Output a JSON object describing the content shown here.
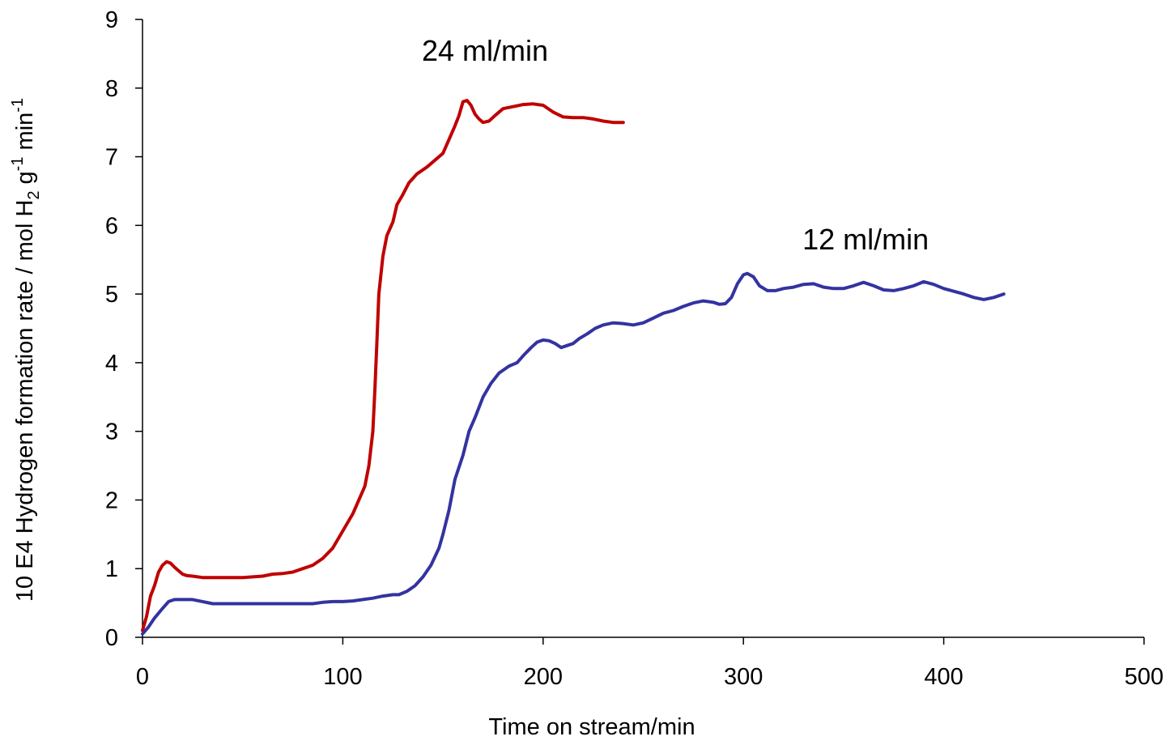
{
  "chart_data": {
    "type": "line",
    "title": "",
    "xlabel": "Time on stream/min",
    "ylabel": {
      "prefix": "10 E4 Hydrogen formation rate / mol H",
      "sub": "2",
      "mid1": " g",
      "sup1": "-1",
      "mid2": " min",
      "sup2": "-1"
    },
    "xlim": [
      0,
      500
    ],
    "ylim": [
      0,
      9
    ],
    "xticks": [
      0,
      100,
      200,
      300,
      400,
      500
    ],
    "yticks": [
      0,
      1,
      2,
      3,
      4,
      5,
      6,
      7,
      8,
      9
    ],
    "grid": false,
    "series": [
      {
        "name": "24 ml/min",
        "color": "#c00000",
        "label_at": [
          171,
          8.4
        ],
        "points": [
          [
            0,
            0.1
          ],
          [
            2,
            0.3
          ],
          [
            4,
            0.6
          ],
          [
            6,
            0.75
          ],
          [
            8,
            0.95
          ],
          [
            10,
            1.05
          ],
          [
            12,
            1.1
          ],
          [
            14,
            1.08
          ],
          [
            16,
            1.02
          ],
          [
            18,
            0.97
          ],
          [
            20,
            0.92
          ],
          [
            22,
            0.9
          ],
          [
            25,
            0.89
          ],
          [
            30,
            0.87
          ],
          [
            40,
            0.87
          ],
          [
            50,
            0.87
          ],
          [
            60,
            0.89
          ],
          [
            65,
            0.92
          ],
          [
            70,
            0.93
          ],
          [
            75,
            0.95
          ],
          [
            80,
            1.0
          ],
          [
            85,
            1.05
          ],
          [
            90,
            1.15
          ],
          [
            95,
            1.3
          ],
          [
            100,
            1.55
          ],
          [
            105,
            1.8
          ],
          [
            108,
            2.0
          ],
          [
            111,
            2.2
          ],
          [
            113,
            2.5
          ],
          [
            115,
            3.0
          ],
          [
            116,
            3.6
          ],
          [
            117,
            4.3
          ],
          [
            118,
            5.0
          ],
          [
            120,
            5.55
          ],
          [
            122,
            5.85
          ],
          [
            125,
            6.05
          ],
          [
            127,
            6.3
          ],
          [
            130,
            6.45
          ],
          [
            133,
            6.62
          ],
          [
            137,
            6.75
          ],
          [
            142,
            6.85
          ],
          [
            146,
            6.95
          ],
          [
            150,
            7.05
          ],
          [
            153,
            7.25
          ],
          [
            156,
            7.45
          ],
          [
            158,
            7.6
          ],
          [
            160,
            7.8
          ],
          [
            162,
            7.82
          ],
          [
            164,
            7.75
          ],
          [
            166,
            7.62
          ],
          [
            168,
            7.55
          ],
          [
            170,
            7.5
          ],
          [
            173,
            7.52
          ],
          [
            176,
            7.6
          ],
          [
            180,
            7.7
          ],
          [
            185,
            7.73
          ],
          [
            190,
            7.76
          ],
          [
            195,
            7.77
          ],
          [
            200,
            7.75
          ],
          [
            205,
            7.65
          ],
          [
            210,
            7.58
          ],
          [
            215,
            7.57
          ],
          [
            220,
            7.57
          ],
          [
            225,
            7.55
          ],
          [
            230,
            7.52
          ],
          [
            235,
            7.5
          ],
          [
            240,
            7.5
          ]
        ]
      },
      {
        "name": "12 ml/min",
        "color": "#3333a0",
        "label_at": [
          361,
          5.65
        ],
        "points": [
          [
            0,
            0.05
          ],
          [
            3,
            0.15
          ],
          [
            6,
            0.28
          ],
          [
            10,
            0.42
          ],
          [
            13,
            0.52
          ],
          [
            16,
            0.55
          ],
          [
            20,
            0.55
          ],
          [
            25,
            0.55
          ],
          [
            30,
            0.52
          ],
          [
            35,
            0.49
          ],
          [
            40,
            0.49
          ],
          [
            50,
            0.49
          ],
          [
            60,
            0.49
          ],
          [
            70,
            0.49
          ],
          [
            80,
            0.49
          ],
          [
            85,
            0.49
          ],
          [
            90,
            0.51
          ],
          [
            95,
            0.52
          ],
          [
            100,
            0.52
          ],
          [
            105,
            0.53
          ],
          [
            110,
            0.55
          ],
          [
            115,
            0.57
          ],
          [
            120,
            0.6
          ],
          [
            125,
            0.62
          ],
          [
            128,
            0.62
          ],
          [
            132,
            0.67
          ],
          [
            136,
            0.75
          ],
          [
            140,
            0.88
          ],
          [
            144,
            1.05
          ],
          [
            148,
            1.3
          ],
          [
            150,
            1.5
          ],
          [
            153,
            1.85
          ],
          [
            156,
            2.3
          ],
          [
            160,
            2.65
          ],
          [
            163,
            3.0
          ],
          [
            166,
            3.2
          ],
          [
            170,
            3.5
          ],
          [
            174,
            3.7
          ],
          [
            178,
            3.85
          ],
          [
            183,
            3.95
          ],
          [
            187,
            4.0
          ],
          [
            190,
            4.1
          ],
          [
            194,
            4.22
          ],
          [
            197,
            4.3
          ],
          [
            200,
            4.33
          ],
          [
            203,
            4.32
          ],
          [
            206,
            4.28
          ],
          [
            209,
            4.22
          ],
          [
            212,
            4.25
          ],
          [
            215,
            4.28
          ],
          [
            218,
            4.35
          ],
          [
            222,
            4.42
          ],
          [
            226,
            4.5
          ],
          [
            230,
            4.55
          ],
          [
            235,
            4.58
          ],
          [
            240,
            4.57
          ],
          [
            245,
            4.55
          ],
          [
            250,
            4.58
          ],
          [
            255,
            4.65
          ],
          [
            260,
            4.72
          ],
          [
            265,
            4.76
          ],
          [
            270,
            4.82
          ],
          [
            275,
            4.87
          ],
          [
            280,
            4.9
          ],
          [
            285,
            4.88
          ],
          [
            288,
            4.85
          ],
          [
            291,
            4.86
          ],
          [
            294,
            4.95
          ],
          [
            297,
            5.15
          ],
          [
            300,
            5.28
          ],
          [
            302,
            5.3
          ],
          [
            305,
            5.25
          ],
          [
            308,
            5.12
          ],
          [
            312,
            5.05
          ],
          [
            316,
            5.05
          ],
          [
            320,
            5.08
          ],
          [
            325,
            5.1
          ],
          [
            330,
            5.14
          ],
          [
            335,
            5.15
          ],
          [
            340,
            5.1
          ],
          [
            345,
            5.08
          ],
          [
            350,
            5.08
          ],
          [
            355,
            5.12
          ],
          [
            360,
            5.17
          ],
          [
            365,
            5.12
          ],
          [
            370,
            5.06
          ],
          [
            375,
            5.05
          ],
          [
            380,
            5.08
          ],
          [
            385,
            5.12
          ],
          [
            390,
            5.18
          ],
          [
            395,
            5.14
          ],
          [
            400,
            5.08
          ],
          [
            405,
            5.04
          ],
          [
            410,
            5.0
          ],
          [
            415,
            4.95
          ],
          [
            420,
            4.92
          ],
          [
            425,
            4.95
          ],
          [
            430,
            5.0
          ]
        ]
      }
    ]
  }
}
